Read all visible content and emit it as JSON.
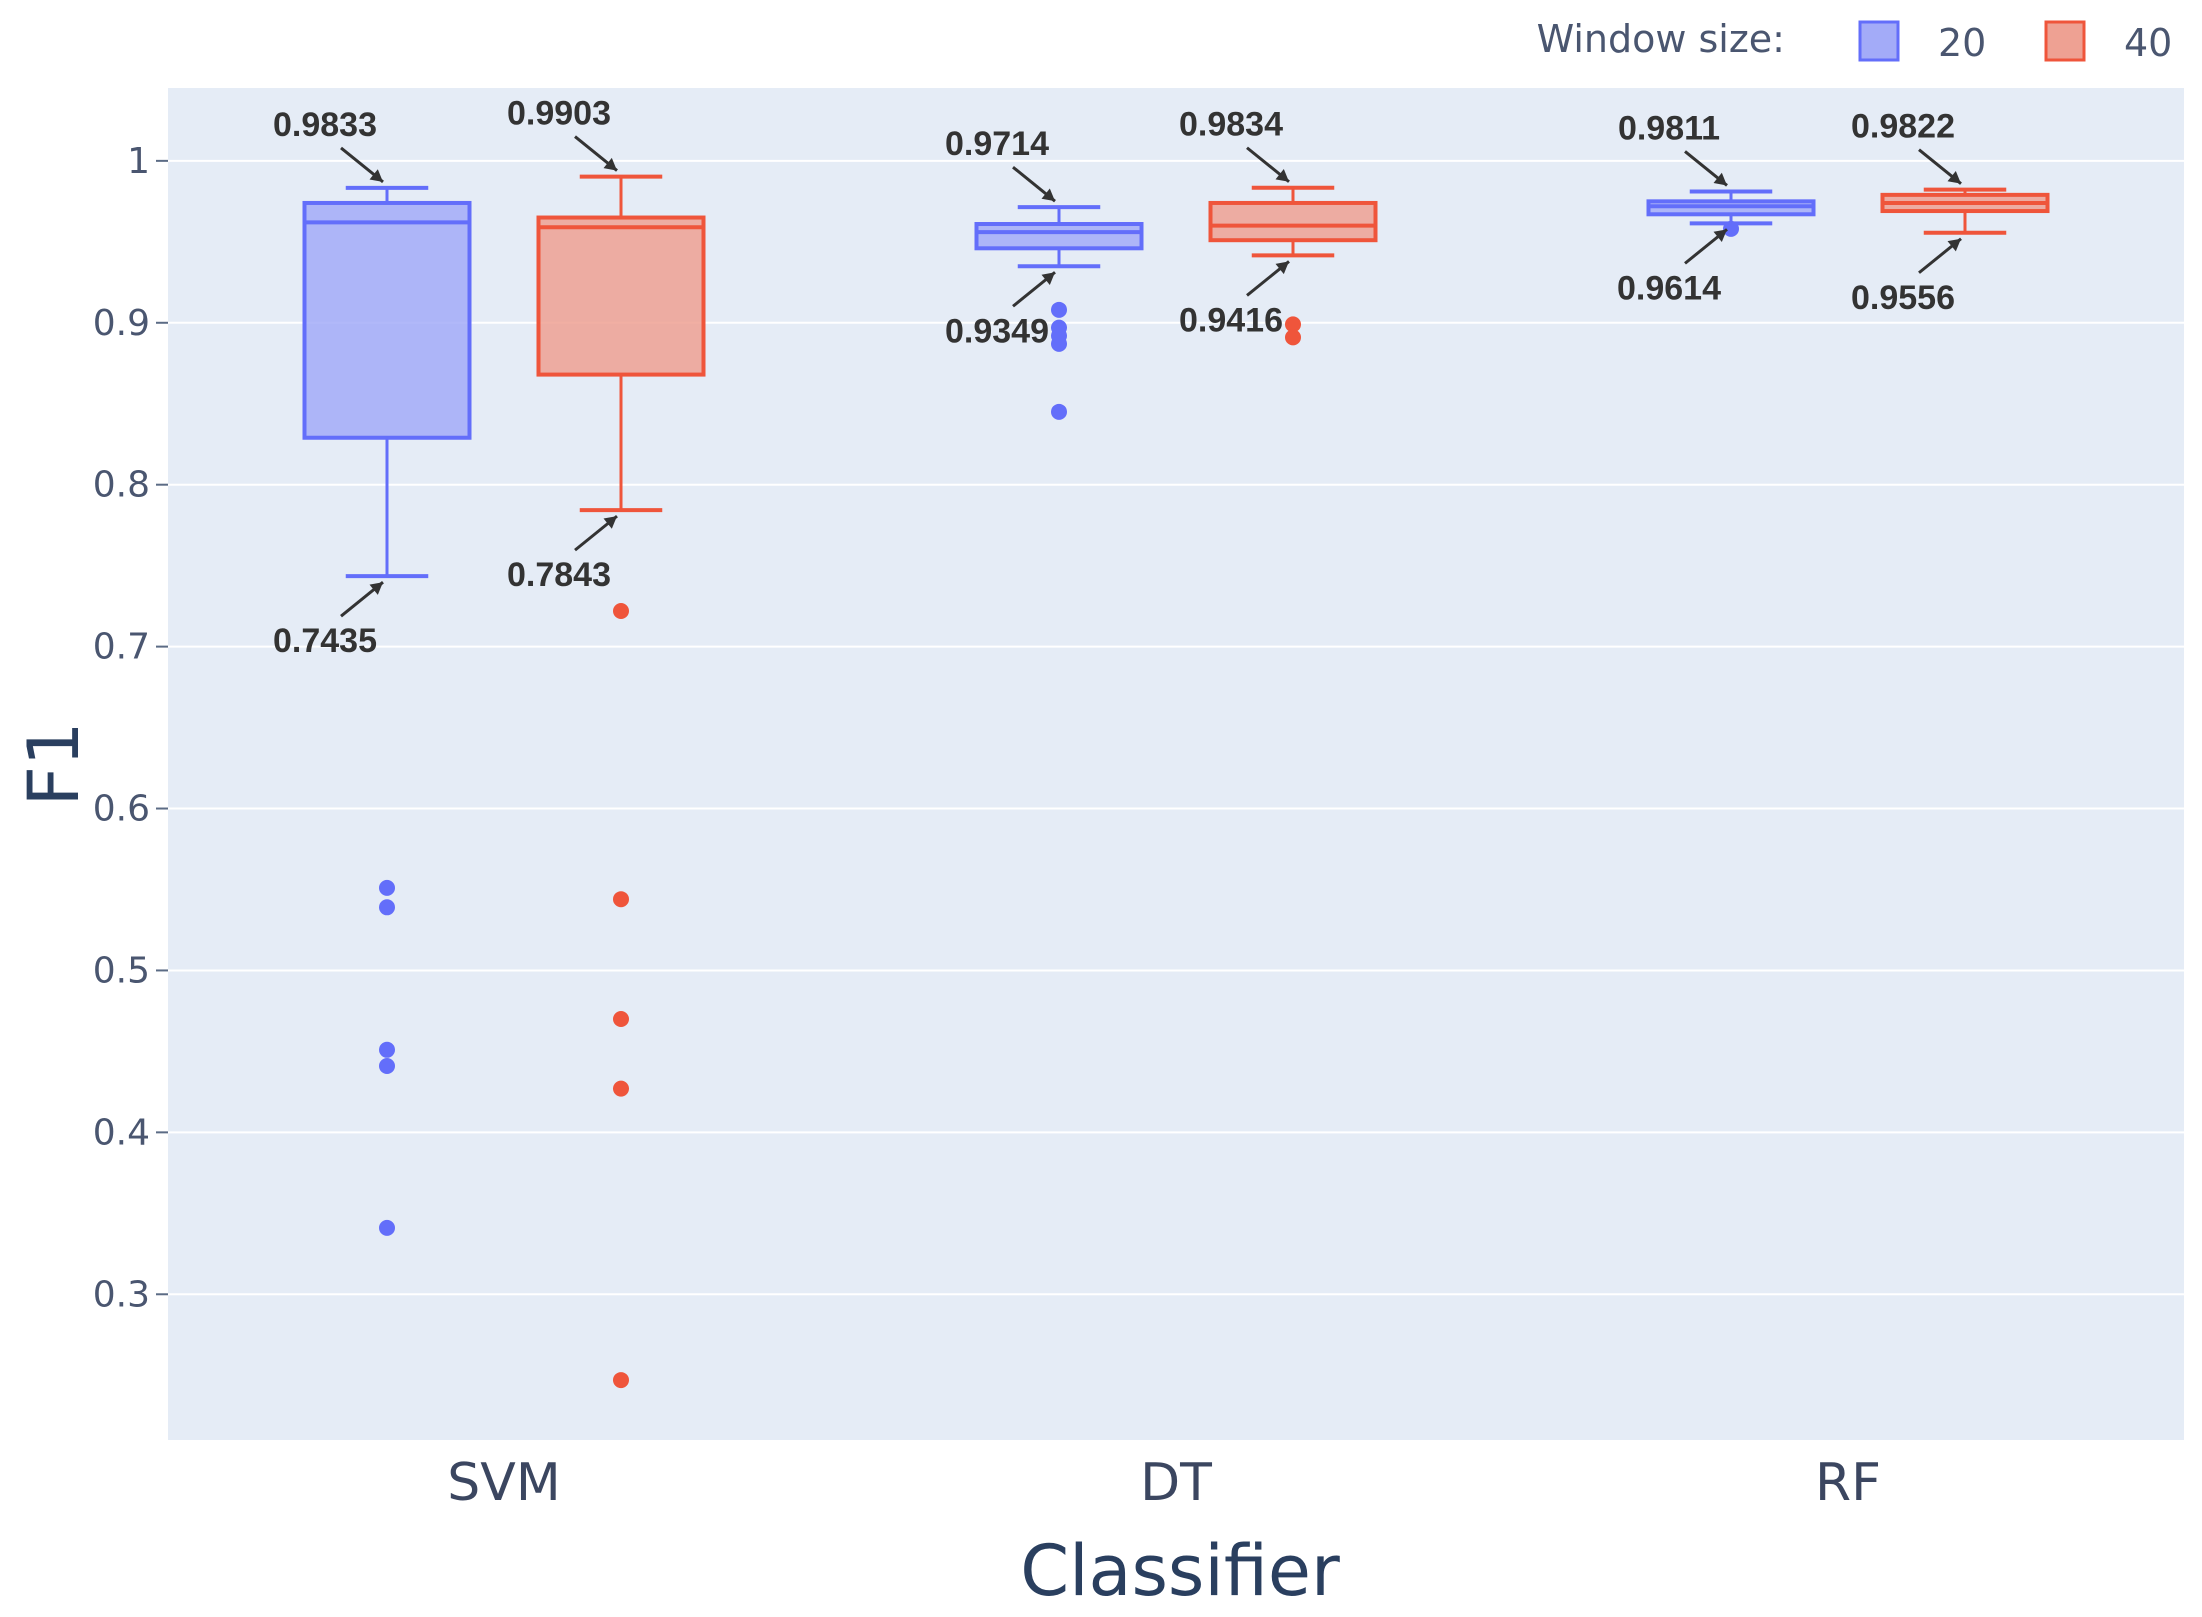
{
  "chart_data": {
    "type": "box",
    "title": "",
    "xlabel": "Classifier",
    "ylabel": "F1",
    "ylim": [
      0.21,
      1.045
    ],
    "yticks": [
      0.3,
      0.4,
      0.5,
      0.6,
      0.7,
      0.8,
      0.9,
      1
    ],
    "ytick_labels": [
      "0.3",
      "0.4",
      "0.5",
      "0.6",
      "0.7",
      "0.8",
      "0.9",
      "1"
    ],
    "grid": true,
    "categories": [
      "SVM",
      "DT",
      "RF"
    ],
    "legend": {
      "title": "Window size:",
      "position": "top-right"
    },
    "series": [
      {
        "name": "20",
        "color": "#636efa",
        "fill": "#a3abf8",
        "boxes": [
          {
            "category": "SVM",
            "lowerfence": 0.7435,
            "q1": 0.829,
            "median": 0.962,
            "q3": 0.974,
            "upperfence": 0.9833,
            "outliers": [
              0.551,
              0.539,
              0.451,
              0.441,
              0.341
            ]
          },
          {
            "category": "DT",
            "lowerfence": 0.9349,
            "q1": 0.946,
            "median": 0.956,
            "q3": 0.961,
            "upperfence": 0.9714,
            "outliers": [
              0.908,
              0.897,
              0.892,
              0.887,
              0.845
            ]
          },
          {
            "category": "RF",
            "lowerfence": 0.9614,
            "q1": 0.967,
            "median": 0.972,
            "q3": 0.975,
            "upperfence": 0.9811,
            "outliers": [
              0.958
            ]
          }
        ],
        "annotations": [
          {
            "value": 0.9833,
            "label": "0.9833"
          },
          {
            "value": 0.7435,
            "label": "0.7435"
          },
          {
            "value": 0.9714,
            "label": "0.9714"
          },
          {
            "value": 0.9349,
            "label": "0.9349"
          },
          {
            "value": 0.9811,
            "label": "0.9811"
          },
          {
            "value": 0.9614,
            "label": "0.9614"
          }
        ]
      },
      {
        "name": "40",
        "color": "#ef553b",
        "fill": "#eea193",
        "boxes": [
          {
            "category": "SVM",
            "lowerfence": 0.7843,
            "q1": 0.868,
            "median": 0.959,
            "q3": 0.965,
            "upperfence": 0.9903,
            "outliers": [
              0.722,
              0.544,
              0.47,
              0.427,
              0.247
            ]
          },
          {
            "category": "DT",
            "lowerfence": 0.9416,
            "q1": 0.951,
            "median": 0.96,
            "q3": 0.974,
            "upperfence": 0.9834,
            "outliers": [
              0.899,
              0.891
            ]
          },
          {
            "category": "RF",
            "lowerfence": 0.9556,
            "q1": 0.969,
            "median": 0.974,
            "q3": 0.979,
            "upperfence": 0.9822,
            "outliers": []
          }
        ],
        "annotations": [
          {
            "value": 0.9903,
            "label": "0.9903"
          },
          {
            "value": 0.7843,
            "label": "0.7843"
          },
          {
            "value": 0.9834,
            "label": "0.9834"
          },
          {
            "value": 0.9416,
            "label": "0.9416"
          },
          {
            "value": 0.9822,
            "label": "0.9822"
          },
          {
            "value": 0.9556,
            "label": "0.9556"
          }
        ]
      }
    ]
  }
}
